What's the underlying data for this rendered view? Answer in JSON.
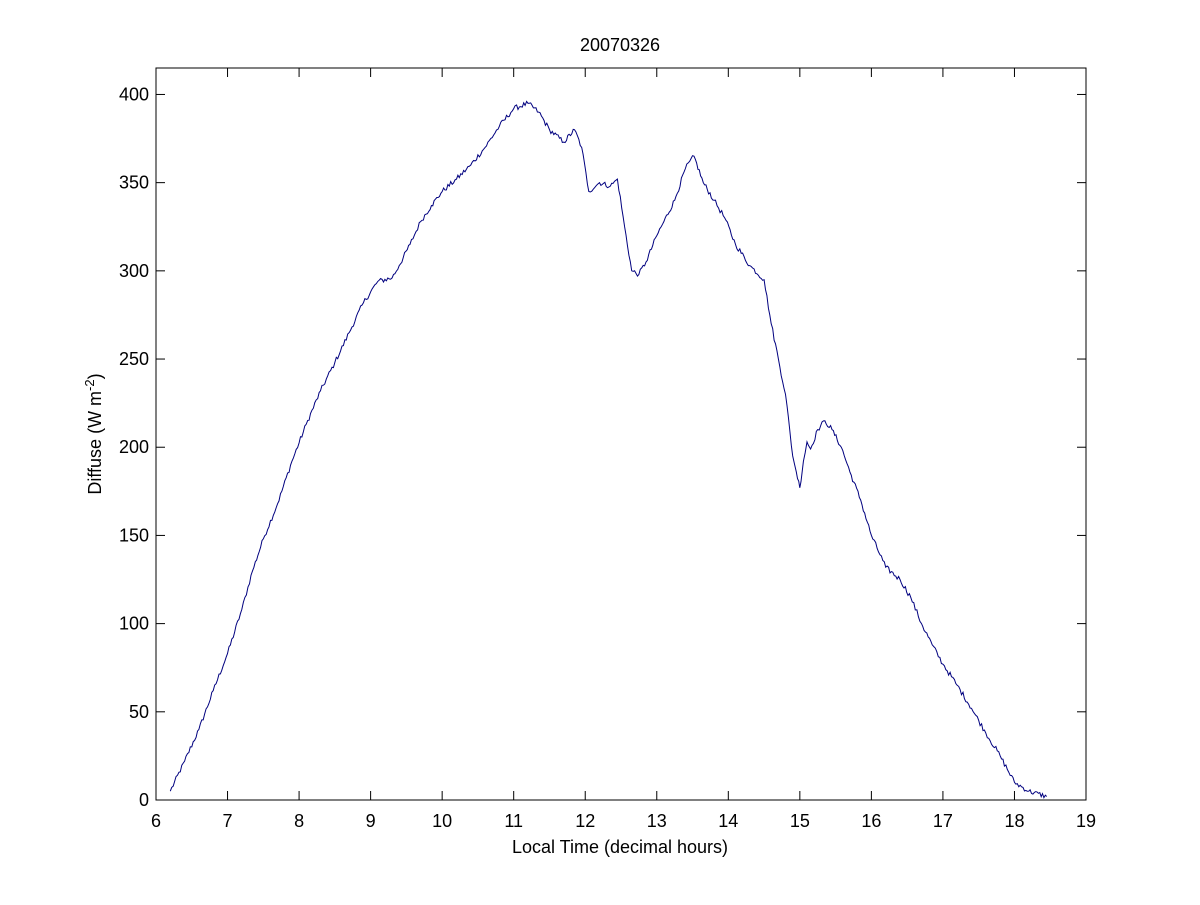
{
  "figure": {
    "title": "20070326",
    "xlabel": "Local Time (decimal hours)",
    "ylabel_main": "Diffuse (W m",
    "ylabel_sup": "-2",
    "ylabel_close": ")"
  },
  "colors": {
    "line": "#00007f",
    "axes": "#000000",
    "background": "#ffffff"
  },
  "chart_data": {
    "type": "line",
    "title": "20070326",
    "xlabel": "Local Time (decimal hours)",
    "ylabel": "Diffuse (W m^-2)",
    "xlim": [
      6,
      19
    ],
    "ylim": [
      0,
      415
    ],
    "xticks": [
      6,
      7,
      8,
      9,
      10,
      11,
      12,
      13,
      14,
      15,
      16,
      17,
      18,
      19
    ],
    "yticks": [
      0,
      50,
      100,
      150,
      200,
      250,
      300,
      350,
      400
    ],
    "grid": false,
    "legend": "none",
    "series": [
      {
        "x": [
          6.2,
          6.4,
          6.6,
          6.8,
          7.0,
          7.2,
          7.35,
          7.5,
          7.7,
          7.9,
          8.1,
          8.3,
          8.5,
          8.7,
          8.9,
          9.1,
          9.3,
          9.4,
          9.55,
          9.7,
          9.85,
          10.0,
          10.2,
          10.4,
          10.6,
          10.8,
          11.0,
          11.2,
          11.35,
          11.5,
          11.7,
          11.85,
          11.95,
          12.05,
          12.2,
          12.35,
          12.45,
          12.55,
          12.65,
          12.75,
          12.85,
          13.0,
          13.1,
          13.25,
          13.4,
          13.52,
          13.65,
          13.8,
          13.95,
          14.1,
          14.3,
          14.5,
          14.6,
          14.7,
          14.8,
          14.9,
          14.95,
          15.0,
          15.05,
          15.1,
          15.15,
          15.25,
          15.35,
          15.45,
          15.58,
          15.7,
          15.85,
          16.0,
          16.2,
          16.4,
          16.55,
          16.7,
          16.85,
          17.0,
          17.2,
          17.4,
          17.6,
          17.8,
          18.0,
          18.2,
          18.45
        ],
        "y": [
          5,
          22,
          40,
          62,
          83,
          108,
          130,
          148,
          168,
          192,
          213,
          232,
          248,
          265,
          282,
          294,
          296,
          303,
          315,
          328,
          337,
          345,
          352,
          360,
          370,
          382,
          392,
          395,
          390,
          380,
          373,
          380,
          370,
          345,
          350,
          348,
          352,
          325,
          300,
          298,
          305,
          320,
          328,
          340,
          358,
          365,
          350,
          340,
          330,
          315,
          303,
          295,
          270,
          250,
          230,
          195,
          186,
          177,
          192,
          203,
          199,
          210,
          215,
          210,
          200,
          186,
          170,
          150,
          132,
          125,
          115,
          100,
          88,
          77,
          65,
          52,
          38,
          25,
          10,
          5,
          2
        ]
      }
    ]
  }
}
